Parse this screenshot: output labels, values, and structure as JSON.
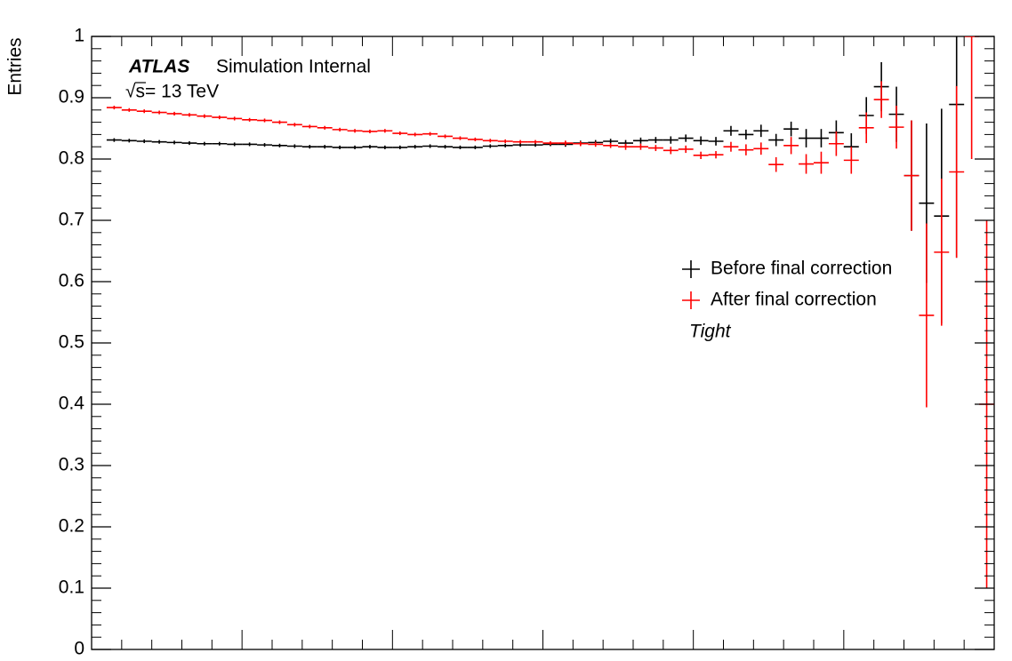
{
  "chart_data": {
    "type": "errorbar",
    "ylabel": "Entries",
    "annotations": [
      "ATLAS",
      "Simulation Internal",
      "√s= 13 TeV",
      "Tight"
    ],
    "ylim": [
      0,
      1
    ],
    "yticks": [
      0,
      0.1,
      0.2,
      0.3,
      0.4,
      0.5,
      0.6,
      0.7,
      0.8,
      0.9,
      1
    ],
    "categories": [
      null,
      null,
      null,
      null,
      null,
      null,
      null,
      null,
      null,
      null,
      null,
      null,
      null,
      null,
      null,
      null,
      null,
      null,
      null,
      null,
      null,
      null,
      null,
      null,
      null,
      null,
      null,
      null,
      null,
      null,
      null,
      null,
      null,
      null,
      null,
      null,
      null,
      null,
      null,
      null,
      null,
      null,
      null,
      null,
      null,
      null,
      null,
      null,
      null,
      null,
      null,
      null,
      null,
      null,
      null,
      null,
      null,
      null,
      null,
      null
    ],
    "series": [
      {
        "name": "Before final correction",
        "color": "#000000",
        "values": [
          null,
          0.831,
          0.83,
          0.829,
          0.828,
          0.827,
          0.826,
          0.825,
          0.825,
          0.824,
          0.824,
          0.823,
          0.822,
          0.821,
          0.82,
          0.82,
          0.819,
          0.819,
          0.82,
          0.819,
          0.819,
          0.82,
          0.821,
          0.82,
          0.819,
          0.819,
          0.821,
          0.822,
          0.823,
          0.823,
          0.824,
          0.824,
          0.826,
          0.827,
          0.829,
          0.826,
          0.83,
          0.831,
          0.831,
          0.834,
          0.83,
          0.829,
          0.846,
          0.84,
          0.846,
          0.831,
          0.849,
          0.834,
          0.834,
          0.843,
          0.82,
          0.871,
          0.918,
          0.873,
          0.773,
          0.728,
          0.707,
          0.889,
          null,
          null
        ],
        "errors": [
          null,
          0.003,
          0.003,
          0.003,
          0.003,
          0.003,
          0.003,
          0.003,
          0.003,
          0.003,
          0.003,
          0.003,
          0.003,
          0.003,
          0.003,
          0.003,
          0.003,
          0.003,
          0.003,
          0.003,
          0.003,
          0.003,
          0.003,
          0.003,
          0.003,
          0.003,
          0.003,
          0.003,
          0.003,
          0.003,
          0.003,
          0.004,
          0.004,
          0.004,
          0.004,
          0.005,
          0.005,
          0.005,
          0.006,
          0.006,
          0.007,
          0.007,
          0.008,
          0.008,
          0.01,
          0.01,
          0.012,
          0.015,
          0.015,
          0.02,
          0.022,
          0.03,
          0.04,
          0.045,
          0.09,
          0.13,
          0.175,
          0.25,
          null,
          null
        ]
      },
      {
        "name": "After final correction",
        "color": "#ff0000",
        "values": [
          null,
          0.884,
          0.88,
          0.878,
          0.876,
          0.874,
          0.872,
          0.87,
          0.868,
          0.866,
          0.864,
          0.863,
          0.86,
          0.856,
          0.853,
          0.851,
          0.848,
          0.846,
          0.845,
          0.846,
          0.842,
          0.84,
          0.841,
          0.837,
          0.834,
          0.832,
          0.83,
          0.829,
          0.828,
          0.828,
          0.826,
          0.826,
          0.825,
          0.824,
          0.822,
          0.82,
          0.82,
          0.818,
          0.814,
          0.816,
          0.806,
          0.807,
          0.82,
          0.815,
          0.817,
          0.791,
          0.822,
          0.792,
          0.794,
          0.825,
          0.798,
          0.851,
          0.897,
          0.852,
          0.773,
          0.545,
          0.648,
          0.779,
          1.0,
          0.4
        ],
        "errors": [
          null,
          0.003,
          0.003,
          0.003,
          0.003,
          0.003,
          0.003,
          0.003,
          0.003,
          0.003,
          0.003,
          0.003,
          0.003,
          0.003,
          0.003,
          0.003,
          0.003,
          0.003,
          0.003,
          0.003,
          0.003,
          0.003,
          0.003,
          0.003,
          0.003,
          0.003,
          0.003,
          0.003,
          0.003,
          0.003,
          0.003,
          0.004,
          0.004,
          0.004,
          0.004,
          0.005,
          0.005,
          0.005,
          0.006,
          0.006,
          0.006,
          0.006,
          0.008,
          0.009,
          0.01,
          0.012,
          0.014,
          0.016,
          0.018,
          0.02,
          0.022,
          0.025,
          0.03,
          0.035,
          0.09,
          0.15,
          0.12,
          0.14,
          0.2,
          0.3
        ]
      }
    ],
    "legend": "right"
  }
}
